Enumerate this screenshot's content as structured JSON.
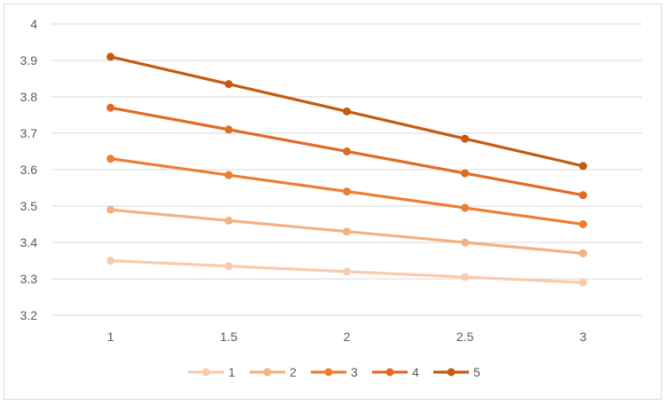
{
  "chart_data": {
    "type": "line",
    "title": "",
    "xlabel": "",
    "ylabel": "",
    "x": [
      1,
      1.5,
      2,
      2.5,
      3
    ],
    "x_tick_labels": [
      "1",
      "1.5",
      "2",
      "2.5",
      "3"
    ],
    "ylim": [
      3.2,
      4.0
    ],
    "y_ticks": [
      3.2,
      3.3,
      3.4,
      3.5,
      3.6,
      3.7,
      3.8,
      3.9,
      4.0
    ],
    "y_tick_labels": [
      "3.2",
      "3.3",
      "3.4",
      "3.5",
      "3.6",
      "3.7",
      "3.8",
      "3.9",
      "4"
    ],
    "grid": true,
    "legend_position": "bottom",
    "series": [
      {
        "name": "1",
        "color": "#f8cbad",
        "values": [
          3.35,
          3.335,
          3.32,
          3.305,
          3.29
        ]
      },
      {
        "name": "2",
        "color": "#f4b183",
        "values": [
          3.49,
          3.46,
          3.43,
          3.4,
          3.37
        ]
      },
      {
        "name": "3",
        "color": "#ed7d31",
        "values": [
          3.63,
          3.585,
          3.54,
          3.495,
          3.45
        ]
      },
      {
        "name": "4",
        "color": "#e06b25",
        "values": [
          3.77,
          3.71,
          3.65,
          3.59,
          3.53
        ]
      },
      {
        "name": "5",
        "color": "#c55a11",
        "values": [
          3.91,
          3.835,
          3.76,
          3.685,
          3.61
        ]
      }
    ]
  }
}
